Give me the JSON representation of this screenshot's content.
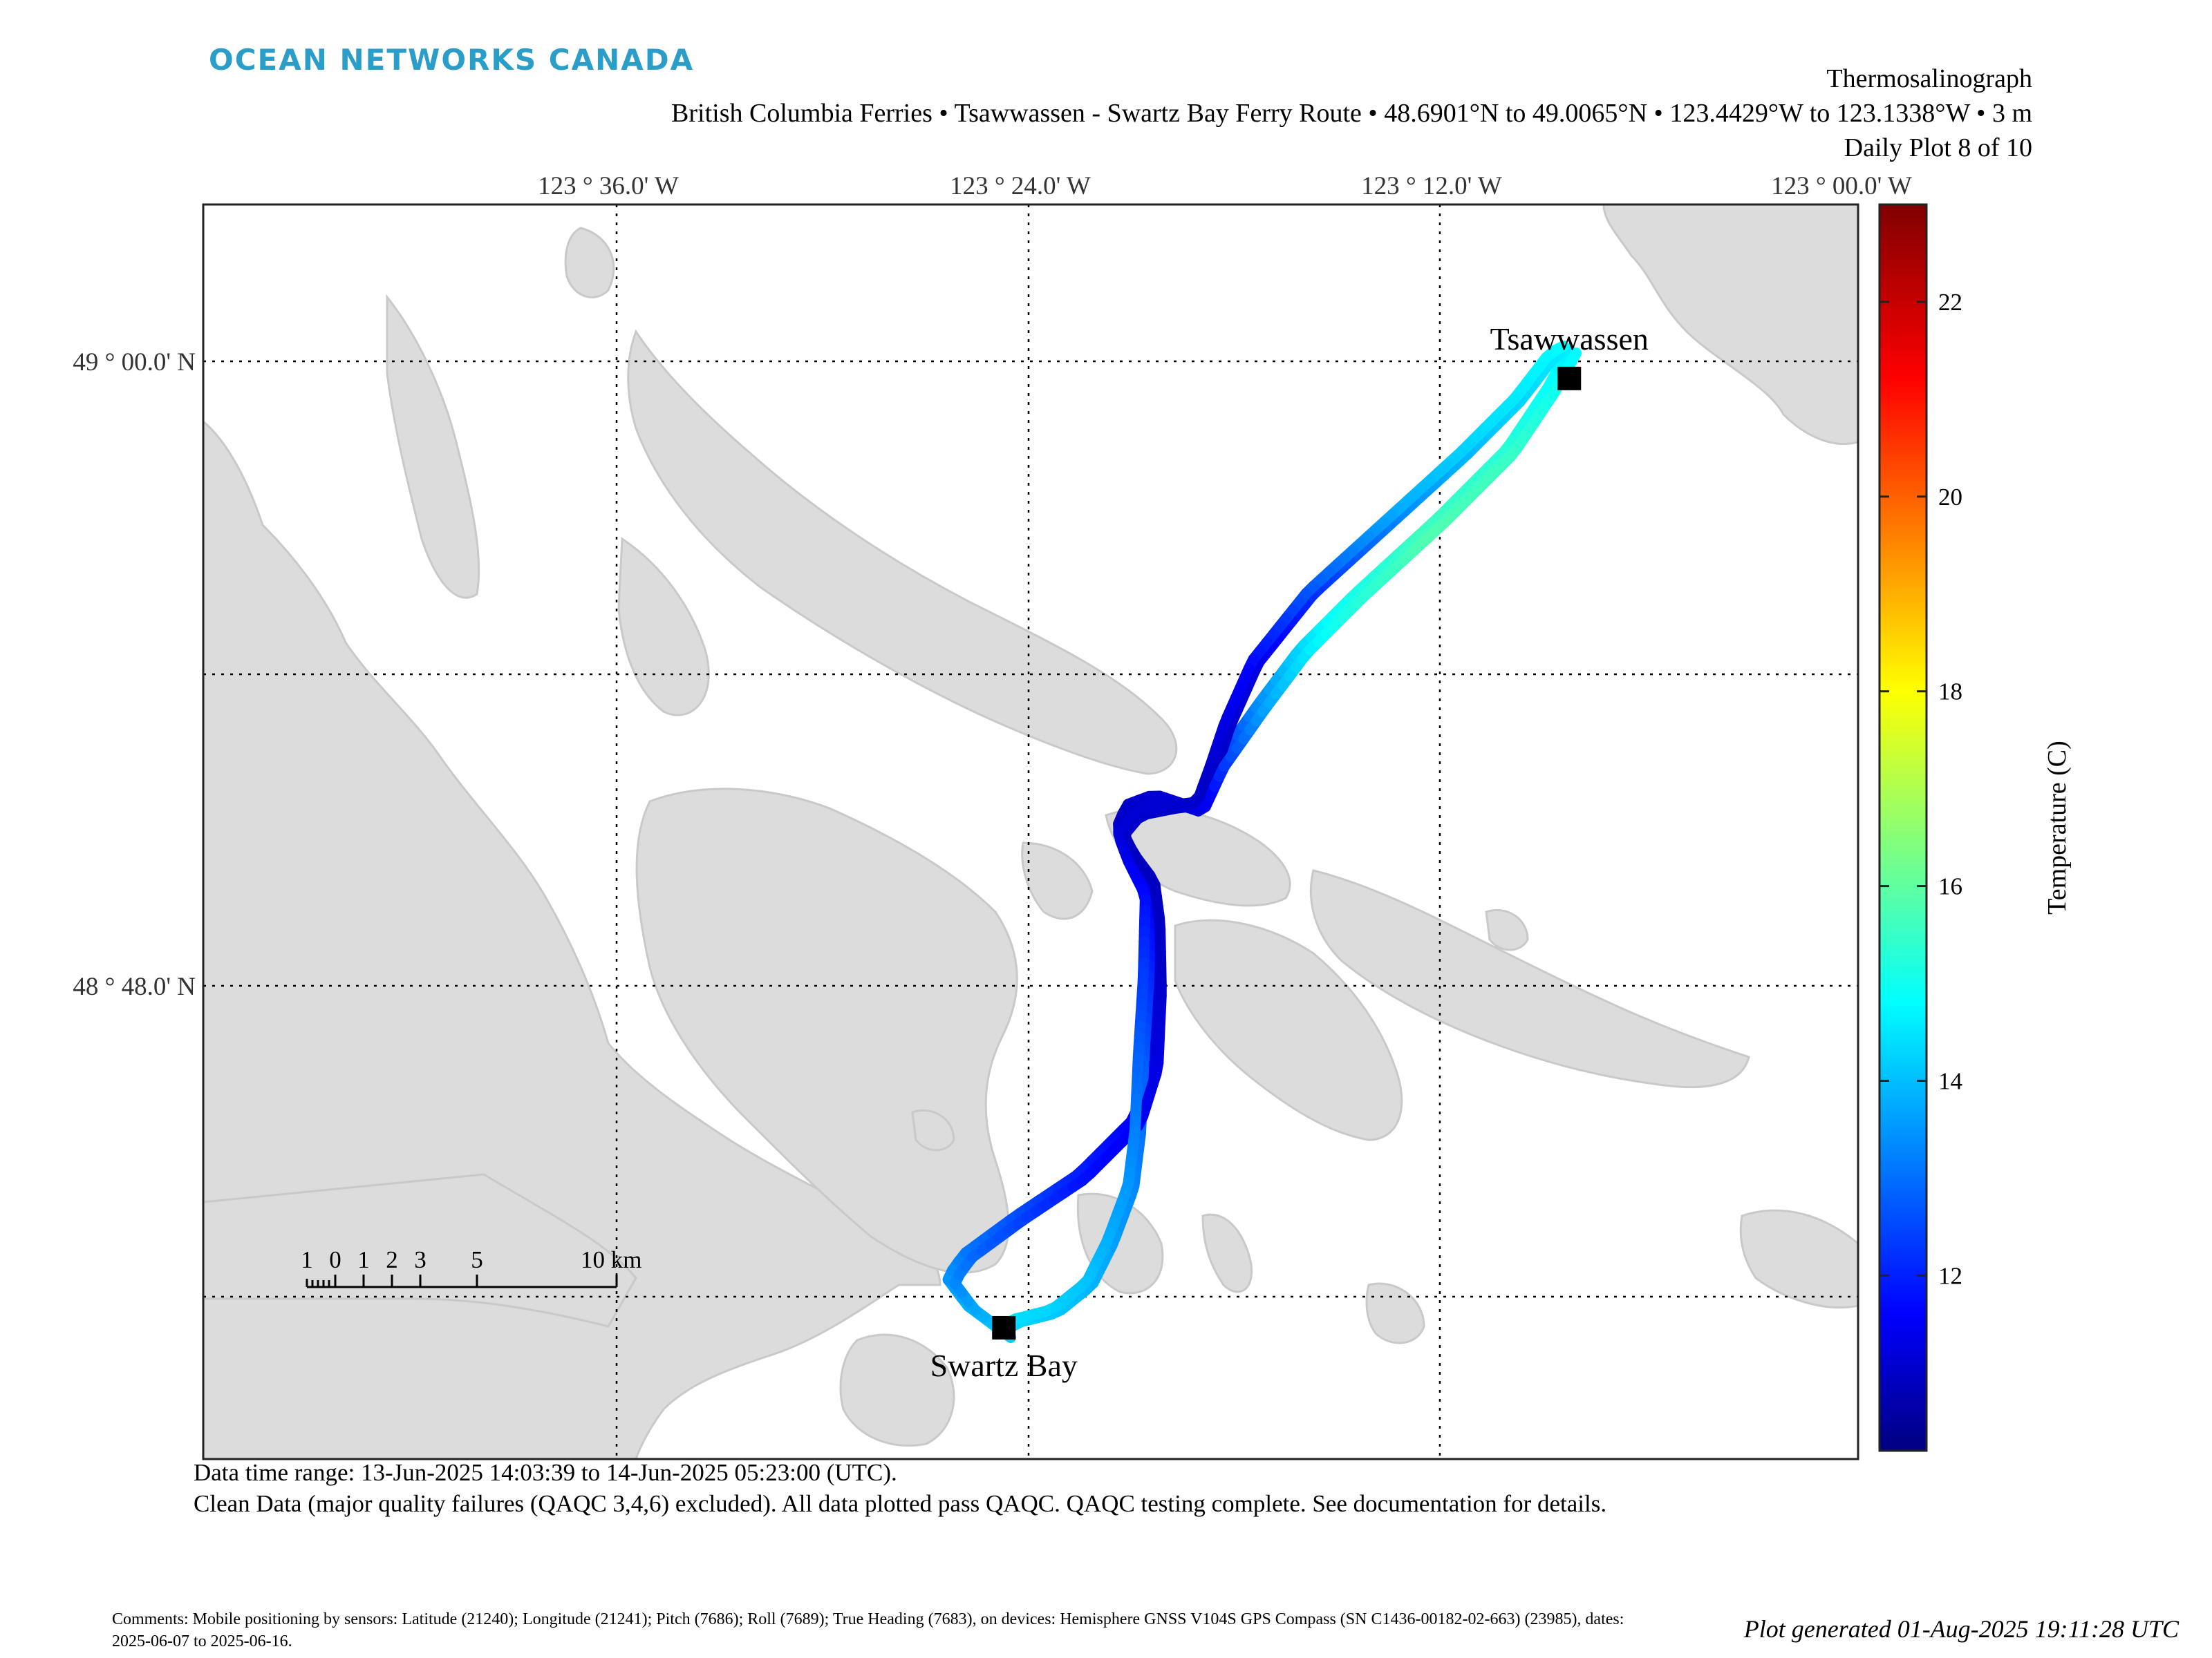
{
  "header": {
    "logo_text": "OCEAN NETWORKS CANADA",
    "instrument": "Thermosalinograph",
    "subtitle": "British Columbia Ferries • Tsawwassen - Swartz Bay Ferry Route • 48.6901°N to 49.0065°N • 123.4429°W to 123.1338°W • 3 m",
    "plot_index": "Daily Plot 8 of 10"
  },
  "map": {
    "lon_labels": [
      "123 ° 36.0' W",
      "123 ° 24.0' W",
      "123 ° 12.0' W",
      "123 ° 00.0' W"
    ],
    "lat_labels": [
      "49 ° 00.0' N",
      "48 ° 48.0' N"
    ],
    "locations": [
      {
        "name": "Tsawwassen",
        "lat": 48.9945,
        "lon": -123.1375
      },
      {
        "name": "Swartz Bay",
        "lat": 48.6905,
        "lon": -123.412
      }
    ],
    "scale_bar": {
      "labels": [
        "1",
        "0",
        "1",
        "2",
        "3",
        "5",
        "10 km"
      ]
    },
    "colors": {
      "land": "#dcdcdc",
      "water": "#ffffff",
      "grid": "#000000"
    }
  },
  "colorbar": {
    "label": "Temperature (C)",
    "ticks": [
      12,
      14,
      16,
      18,
      20,
      22
    ],
    "range": [
      10.2,
      23.0
    ]
  },
  "track": {
    "variable": "temperature",
    "unit": "C",
    "passes": [
      {
        "from": "Swartz Bay",
        "to": "Tsawwassen",
        "temps": [
          14.5,
          13.2,
          12.2,
          11.6,
          11.2,
          11.0,
          11.3,
          13.5,
          15.1,
          15.8,
          15.5,
          14.8
        ]
      },
      {
        "from": "Tsawwassen",
        "to": "Swartz Bay",
        "temps": [
          14.8,
          14.3,
          13.6,
          12.5,
          11.4,
          11.0,
          11.2,
          12.0,
          12.9,
          13.4,
          14.0,
          14.6
        ]
      },
      {
        "from": "Swartz Bay",
        "to": "Tsawwassen",
        "temps": [
          14.4,
          13.0,
          12.0,
          11.5,
          11.1,
          11.0,
          11.4,
          13.8,
          15.3,
          16.0,
          15.7,
          14.9
        ]
      },
      {
        "from": "Tsawwassen",
        "to": "Swartz Bay",
        "temps": [
          15.0,
          14.6,
          14.0,
          13.0,
          11.8,
          11.1,
          11.3,
          12.3,
          13.0,
          13.6,
          14.2,
          14.7
        ]
      }
    ]
  },
  "footer": {
    "time_range": "Data time range: 13-Jun-2025 14:03:39 to 14-Jun-2025 05:23:00 (UTC).",
    "qaqc": "Clean Data (major quality failures (QAQC 3,4,6) excluded). All data plotted pass QAQC. QAQC testing complete. See documentation for details.",
    "comments": "Comments: Mobile positioning by sensors: Latitude (21240); Longitude (21241); Pitch (7686); Roll (7689); True Heading (7683), on devices: Hemisphere GNSS V104S GPS Compass (SN C1436-00182-02-663) (23985), dates: 2025-06-07 to 2025-06-16.",
    "generated": "Plot generated 01-Aug-2025 19:11:28 UTC"
  }
}
